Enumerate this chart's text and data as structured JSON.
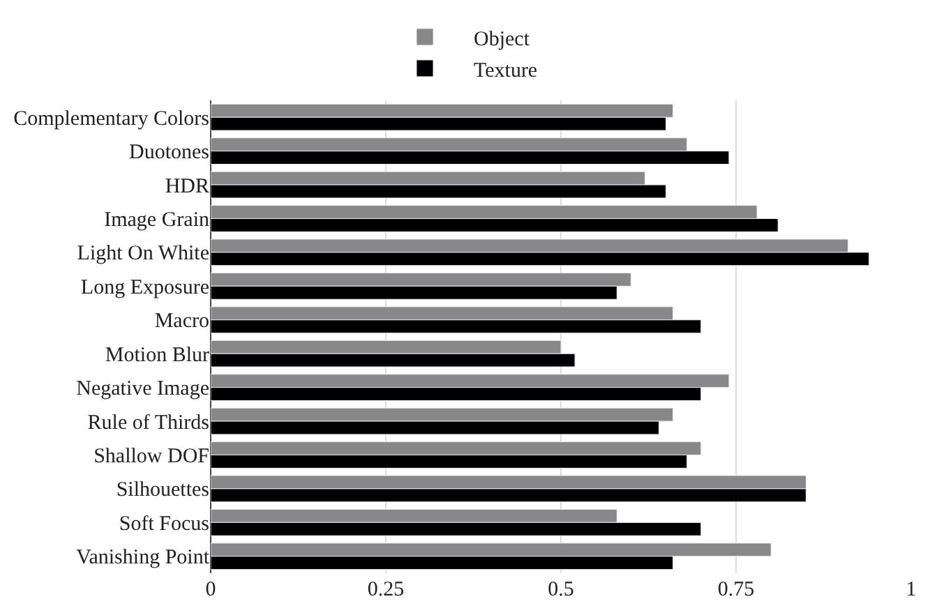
{
  "chart_data": {
    "type": "bar",
    "orientation": "horizontal",
    "categories": [
      "Complementary Colors",
      "Duotones",
      "HDR",
      "Image Grain",
      "Light On White",
      "Long Exposure",
      "Macro",
      "Motion Blur",
      "Negative Image",
      "Rule of Thirds",
      "Shallow DOF",
      "Silhouettes",
      "Soft Focus",
      "Vanishing Point"
    ],
    "series": [
      {
        "name": "Object",
        "color": "#888888",
        "values": [
          0.66,
          0.68,
          0.62,
          0.78,
          0.91,
          0.6,
          0.66,
          0.5,
          0.74,
          0.66,
          0.7,
          0.85,
          0.58,
          0.8
        ]
      },
      {
        "name": "Texture",
        "color": "#000000",
        "values": [
          0.65,
          0.74,
          0.65,
          0.81,
          0.94,
          0.58,
          0.7,
          0.52,
          0.7,
          0.64,
          0.68,
          0.85,
          0.7,
          0.66
        ]
      }
    ],
    "xlim": [
      0,
      1
    ],
    "xticks": [
      0,
      0.25,
      0.5,
      0.75,
      1
    ],
    "grid": "x",
    "legend": "top"
  }
}
